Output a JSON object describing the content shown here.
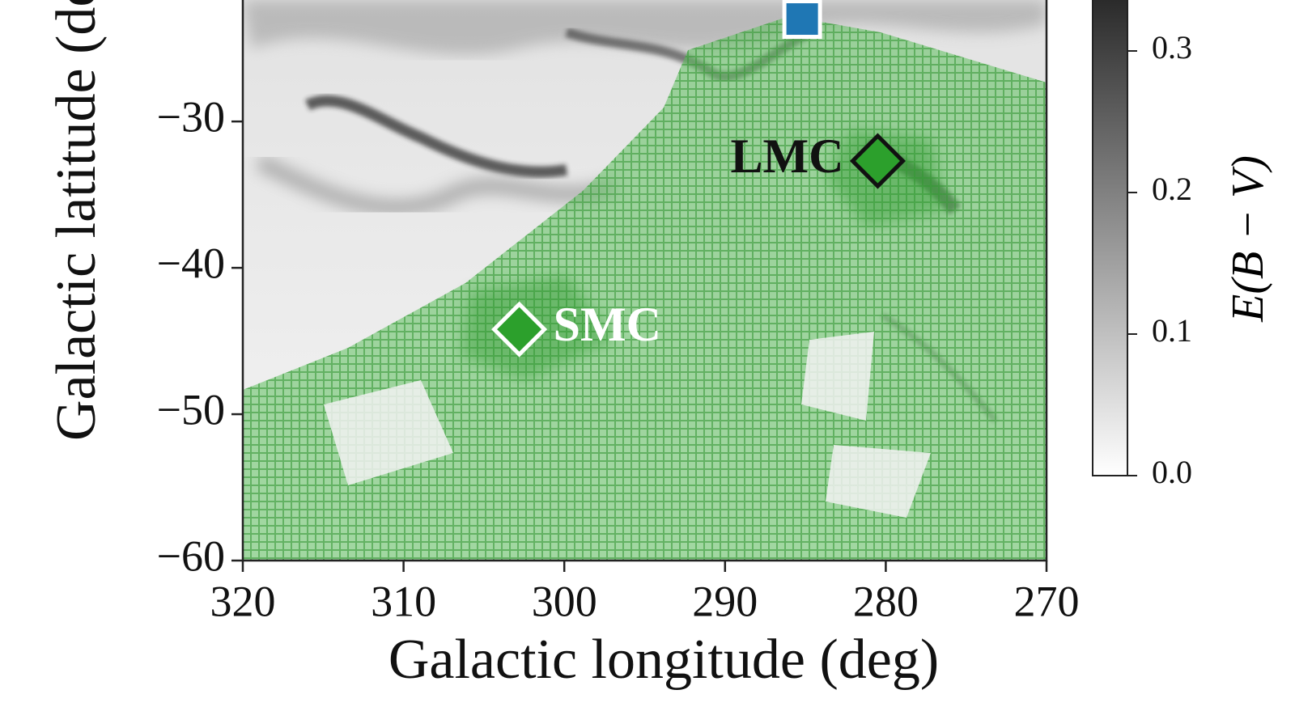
{
  "chart_data": {
    "type": "scatter",
    "xlabel": "Galactic longitude (deg)",
    "ylabel": "Galactic latitude (deg)",
    "xlim": [
      320,
      270
    ],
    "ylim": [
      -60,
      -21.7
    ],
    "xticks": [
      320,
      310,
      300,
      290,
      280,
      270
    ],
    "yticks": [
      {
        "value": -60,
        "label": "−60"
      },
      {
        "value": -50,
        "label": "−50"
      },
      {
        "value": -40,
        "label": "−40"
      },
      {
        "value": -30,
        "label": "−30"
      }
    ],
    "series": [
      {
        "name": "LMC",
        "color": "#2ca02c",
        "edgecolor": "#111111",
        "label_color": "#111111",
        "label_side": "left",
        "marker": "diamond",
        "x": [
          280.5
        ],
        "values": [
          -32.7
        ]
      },
      {
        "name": "SMC",
        "color": "#2ca02c",
        "edgecolor": "#ffffff",
        "label_color": "#ffffff",
        "label_side": "right",
        "marker": "diamond",
        "x": [
          302.8
        ],
        "values": [
          -44.2
        ]
      },
      {
        "color": "#1f77b4",
        "edgecolor": "#ffffff",
        "marker": "square",
        "x": [
          285.2
        ],
        "values": [
          -23.0
        ]
      }
    ],
    "colorbar": {
      "label": "E(B − V)",
      "lim": [
        0,
        0.336
      ],
      "colors": [
        "#ffffff",
        "#2a2a2a"
      ],
      "ticks": [
        {
          "value": 0,
          "label": "0.0"
        },
        0.1,
        0.2,
        0.3
      ]
    }
  }
}
